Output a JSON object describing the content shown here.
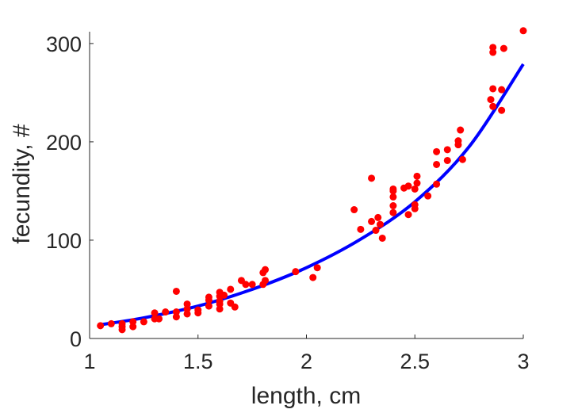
{
  "chart_data": {
    "type": "scatter",
    "title": "",
    "xlabel": "length, cm",
    "ylabel": "fecundity, #",
    "xlim": [
      1,
      3
    ],
    "ylim": [
      0,
      312
    ],
    "x_ticks": [
      1,
      1.5,
      2,
      2.5,
      3
    ],
    "x_tick_labels": [
      "1",
      "1.5",
      "2",
      "2.5",
      "3"
    ],
    "y_ticks": [
      0,
      100,
      200,
      300
    ],
    "y_tick_labels": [
      "0",
      "100",
      "200",
      "300"
    ],
    "grid": false,
    "box": false,
    "points_color": "#ff0000",
    "fit_color": "#0000ff",
    "points": [
      [
        1.05,
        13
      ],
      [
        1.1,
        15
      ],
      [
        1.15,
        9
      ],
      [
        1.15,
        12
      ],
      [
        1.15,
        15
      ],
      [
        1.2,
        12
      ],
      [
        1.2,
        17
      ],
      [
        1.25,
        17
      ],
      [
        1.3,
        20
      ],
      [
        1.3,
        26
      ],
      [
        1.32,
        20
      ],
      [
        1.35,
        27
      ],
      [
        1.4,
        22
      ],
      [
        1.4,
        27
      ],
      [
        1.4,
        48
      ],
      [
        1.45,
        25
      ],
      [
        1.45,
        30
      ],
      [
        1.45,
        35
      ],
      [
        1.5,
        26
      ],
      [
        1.5,
        29
      ],
      [
        1.55,
        33
      ],
      [
        1.55,
        39
      ],
      [
        1.55,
        42
      ],
      [
        1.6,
        30
      ],
      [
        1.6,
        35
      ],
      [
        1.6,
        38
      ],
      [
        1.6,
        43
      ],
      [
        1.6,
        47
      ],
      [
        1.62,
        44
      ],
      [
        1.65,
        36
      ],
      [
        1.65,
        50
      ],
      [
        1.67,
        32
      ],
      [
        1.7,
        59
      ],
      [
        1.72,
        55
      ],
      [
        1.75,
        55
      ],
      [
        1.8,
        55
      ],
      [
        1.8,
        67
      ],
      [
        1.81,
        70
      ],
      [
        1.81,
        59
      ],
      [
        1.95,
        68
      ],
      [
        2.03,
        62
      ],
      [
        2.05,
        72
      ],
      [
        2.22,
        131
      ],
      [
        2.25,
        111
      ],
      [
        2.3,
        119
      ],
      [
        2.3,
        163
      ],
      [
        2.32,
        110
      ],
      [
        2.33,
        123
      ],
      [
        2.34,
        116
      ],
      [
        2.35,
        102
      ],
      [
        2.4,
        128
      ],
      [
        2.4,
        135
      ],
      [
        2.4,
        144
      ],
      [
        2.4,
        150
      ],
      [
        2.4,
        152
      ],
      [
        2.45,
        153
      ],
      [
        2.47,
        126
      ],
      [
        2.47,
        155
      ],
      [
        2.5,
        132
      ],
      [
        2.5,
        136
      ],
      [
        2.5,
        152
      ],
      [
        2.51,
        158
      ],
      [
        2.51,
        165
      ],
      [
        2.56,
        145
      ],
      [
        2.6,
        157
      ],
      [
        2.6,
        177
      ],
      [
        2.6,
        190
      ],
      [
        2.65,
        181
      ],
      [
        2.65,
        192
      ],
      [
        2.7,
        197
      ],
      [
        2.7,
        201
      ],
      [
        2.71,
        212
      ],
      [
        2.72,
        182
      ],
      [
        2.85,
        243
      ],
      [
        2.86,
        236
      ],
      [
        2.86,
        254
      ],
      [
        2.86,
        291
      ],
      [
        2.86,
        296
      ],
      [
        2.9,
        232
      ],
      [
        2.9,
        253
      ],
      [
        2.91,
        295
      ],
      [
        3.0,
        313
      ]
    ],
    "fit_curve": [
      [
        1.05,
        14
      ],
      [
        1.25,
        21
      ],
      [
        1.5,
        33
      ],
      [
        1.75,
        50
      ],
      [
        2.0,
        72
      ],
      [
        2.25,
        101
      ],
      [
        2.5,
        139
      ],
      [
        2.75,
        195
      ],
      [
        3.0,
        279
      ]
    ]
  }
}
